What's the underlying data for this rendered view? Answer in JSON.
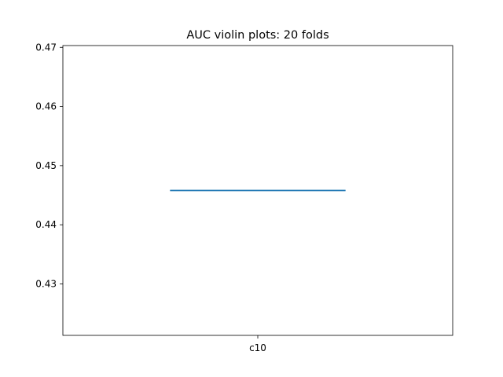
{
  "chart_data": {
    "type": "violin",
    "title": "AUC violin plots: 20 folds",
    "xlabel": "",
    "ylabel": "",
    "categories": [
      "c10"
    ],
    "series": [
      {
        "values": [
          0.4458
        ],
        "min": 0.4458,
        "max": 0.4458,
        "color": "#1f77b4"
      }
    ],
    "ylim": [
      0.4213,
      0.4703
    ],
    "yticks": [
      0.43,
      0.44,
      0.45,
      0.46,
      0.47
    ],
    "ytick_labels": [
      "0.43",
      "0.44",
      "0.45",
      "0.46",
      "0.47"
    ],
    "grid": false
  }
}
